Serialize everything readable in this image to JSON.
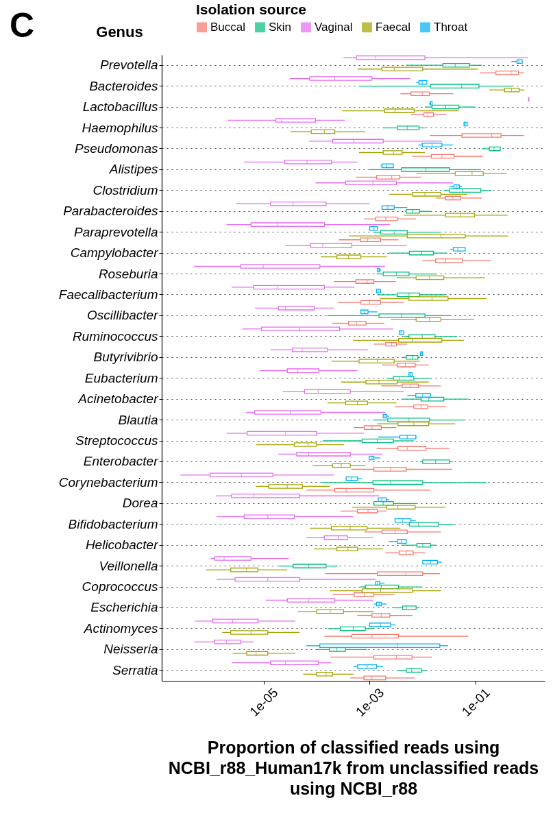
{
  "chart_data": {
    "type": "box",
    "orientation": "horizontal",
    "title": "C",
    "ylabel": "Genus",
    "xlabel": "Proportion of classified reads using NCBI_r88_Human17k from unclassified reads using NCBI_r88",
    "legend_title": "Isolation source",
    "legend": "top",
    "grid": "y",
    "log": "x",
    "xlim": [
      1.2e-07,
      2
    ],
    "xticks": [
      {
        "value": 1e-05,
        "label": "1e-05"
      },
      {
        "value": 0.001,
        "label": "1e-03"
      },
      {
        "value": 0.1,
        "label": "1e-01"
      }
    ],
    "categories": [
      "Prevotella",
      "Bacteroides",
      "Lactobacillus",
      "Haemophilus",
      "Pseudomonas",
      "Alistipes",
      "Clostridium",
      "Parabacteroides",
      "Paraprevotella",
      "Campylobacter",
      "Roseburia",
      "Faecalibacterium",
      "Oscillibacter",
      "Ruminococcus",
      "Butyrivibrio",
      "Eubacterium",
      "Acinetobacter",
      "Blautia",
      "Streptococcus",
      "Enterobacter",
      "Corynebacterium",
      "Dorea",
      "Bifidobacterium",
      "Helicobacter",
      "Veillonella",
      "Coprococcus",
      "Escherichia",
      "Actinomyces",
      "Neisseria",
      "Serratia"
    ],
    "series": [
      {
        "name": "Buccal",
        "color": "#f8766d",
        "boxes": [
          {
            "low": 0.12,
            "q1": 0.24,
            "median": 0.46,
            "q3": 0.64,
            "high": 0.81
          },
          {
            "low": 0.0038,
            "q1": 0.006,
            "median": 0.0098,
            "q3": 0.0135,
            "high": 0.038
          },
          {
            "low": 0.006,
            "q1": 0.0105,
            "median": 0.0125,
            "q3": 0.016,
            "high": 0.028
          },
          {
            "low": 0.0135,
            "q1": 0.055,
            "median": 0.2,
            "q3": 0.3,
            "high": 0.81
          },
          {
            "low": 0.0063,
            "q1": 0.0145,
            "median": 0.023,
            "q3": 0.039,
            "high": 0.135
          },
          {
            "low": 0.00055,
            "q1": 0.00135,
            "median": 0.0026,
            "q3": 0.0037,
            "high": 0.0093
          },
          {
            "low": 0.0175,
            "q1": 0.027,
            "median": 0.037,
            "q3": 0.052,
            "high": 0.13
          },
          {
            "low": 0.00078,
            "q1": 0.0013,
            "median": 0.002,
            "q3": 0.0033,
            "high": 0.0075
          },
          {
            "low": 0.00026,
            "q1": 0.00067,
            "median": 0.00091,
            "q3": 0.0016,
            "high": 0.0035
          },
          {
            "low": 0.0098,
            "q1": 0.0175,
            "median": 0.027,
            "q3": 0.056,
            "high": 0.19
          },
          {
            "low": 0.00021,
            "q1": 0.00055,
            "median": 0.00089,
            "q3": 0.0012,
            "high": 0.0031
          },
          {
            "low": 0.00025,
            "q1": 0.00068,
            "median": 0.00098,
            "q3": 0.0016,
            "high": 0.0044
          },
          {
            "low": 0.000195,
            "q1": 0.0004,
            "median": 0.00056,
            "q3": 0.00085,
            "high": 0.0019
          },
          {
            "low": 0.0012,
            "q1": 0.002,
            "median": 0.0026,
            "q3": 0.0032,
            "high": 0.0051
          },
          {
            "low": 0.0017,
            "q1": 0.0033,
            "median": 0.0047,
            "q3": 0.0072,
            "high": 0.013
          },
          {
            "low": 0.00165,
            "q1": 0.0041,
            "median": 0.0058,
            "q3": 0.0083,
            "high": 0.022
          },
          {
            "low": 0.003,
            "q1": 0.0068,
            "median": 0.0093,
            "q3": 0.0125,
            "high": 0.028
          },
          {
            "low": 0.0005,
            "q1": 0.00079,
            "median": 0.0011,
            "q3": 0.00165,
            "high": 0.0032
          },
          {
            "low": 0.00135,
            "q1": 0.0034,
            "median": 0.0051,
            "q3": 0.0115,
            "high": 0.032
          },
          {
            "low": 0.00045,
            "q1": 0.0012,
            "median": 0.0025,
            "q3": 0.0049,
            "high": 0.036
          },
          {
            "low": 6.4e-05,
            "q1": 0.00022,
            "median": 0.00036,
            "q3": 0.0012,
            "high": 0.014
          },
          {
            "low": 0.00028,
            "q1": 0.00059,
            "median": 0.00093,
            "q3": 0.0014,
            "high": 0.0021
          },
          {
            "low": 0.00079,
            "q1": 0.0017,
            "median": 0.003,
            "q3": 0.0051,
            "high": 0.022
          },
          {
            "low": 0.002,
            "q1": 0.0036,
            "median": 0.0049,
            "q3": 0.0066,
            "high": 0.011
          },
          {
            "low": 0.000145,
            "q1": 0.0014,
            "median": 0.0048,
            "q3": 0.01,
            "high": 0.021
          },
          {
            "low": 0.0002,
            "q1": 0.00051,
            "median": 0.00079,
            "q3": 0.0012,
            "high": 0.0029
          },
          {
            "low": 0.00058,
            "q1": 0.0011,
            "median": 0.00165,
            "q3": 0.0024,
            "high": 0.0064
          },
          {
            "low": 0.00014,
            "q1": 0.00046,
            "median": 0.0011,
            "q3": 0.0035,
            "high": 0.072
          },
          {
            "low": 0.00018,
            "q1": 0.0012,
            "median": 0.0032,
            "q3": 0.0063,
            "high": 0.015
          },
          {
            "low": 0.00043,
            "q1": 0.00078,
            "median": 0.0011,
            "q3": 0.002,
            "high": 0.0071
          }
        ]
      },
      {
        "name": "Skin",
        "color": "#00bf7d",
        "boxes": [
          {
            "low": 0.0049,
            "q1": 0.024,
            "median": 0.041,
            "q3": 0.076,
            "high": 0.13
          },
          {
            "low": 0.00065,
            "q1": 0.014,
            "median": 0.054,
            "q3": 0.115,
            "high": 0.49
          },
          {
            "low": 0.011,
            "q1": 0.015,
            "median": 0.027,
            "q3": 0.048,
            "high": 0.098
          },
          {
            "low": 0.0018,
            "q1": 0.0033,
            "median": 0.0051,
            "q3": 0.0085,
            "high": 0.011
          },
          {
            "low": 0.13,
            "q1": 0.18,
            "median": 0.22,
            "q3": 0.29,
            "high": 0.29
          },
          {
            "low": 0.00095,
            "q1": 0.004,
            "median": 0.0115,
            "q3": 0.032,
            "high": 0.126
          },
          {
            "low": 0.025,
            "q1": 0.032,
            "median": 0.056,
            "q3": 0.124,
            "high": 0.2
          },
          {
            "low": 0.0046,
            "q1": 0.0049,
            "median": 0.0064,
            "q3": 0.0087,
            "high": 0.014
          },
          {
            "low": 0.0012,
            "q1": 0.0016,
            "median": 0.0029,
            "q3": 0.0051,
            "high": 0.021
          },
          {
            "low": 0.0023,
            "q1": 0.0056,
            "median": 0.0095,
            "q3": 0.016,
            "high": 0.029
          },
          {
            "low": 0.00135,
            "q1": 0.0018,
            "median": 0.0032,
            "q3": 0.0055,
            "high": 0.0185
          },
          {
            "low": 0.0014,
            "q1": 0.0033,
            "median": 0.0055,
            "q3": 0.0088,
            "high": 0.026
          },
          {
            "low": 0.00016,
            "q1": 0.0015,
            "median": 0.004,
            "q3": 0.011,
            "high": 0.035
          },
          {
            "low": 0.0044,
            "q1": 0.0055,
            "median": 0.0098,
            "q3": 0.017,
            "high": 0.045
          },
          {
            "low": 0.0042,
            "q1": 0.0049,
            "median": 0.0064,
            "q3": 0.0081,
            "high": 0.0089
          },
          {
            "low": 0.0021,
            "q1": 0.0028,
            "median": 0.0036,
            "q3": 0.0068,
            "high": 0.014
          },
          {
            "low": 0.004,
            "q1": 0.0093,
            "median": 0.013,
            "q3": 0.025,
            "high": 0.073
          },
          {
            "low": 0.0012,
            "q1": 0.0022,
            "median": 0.0055,
            "q3": 0.0135,
            "high": 0.06
          },
          {
            "low": 0.00013,
            "q1": 0.00072,
            "median": 0.0014,
            "q3": 0.0028,
            "high": 0.0068
          },
          {
            "low": 0.0088,
            "q1": 0.01,
            "median": 0.0175,
            "q3": 0.032,
            "high": 0.037
          },
          {
            "low": 0.000125,
            "q1": 0.00115,
            "median": 0.0025,
            "q3": 0.01,
            "high": 0.16
          },
          {
            "low": 0.0012,
            "q1": 0.0012,
            "median": 0.0018,
            "q3": 0.0028,
            "high": 0.0079
          },
          {
            "low": 0.0054,
            "q1": 0.0056,
            "median": 0.0083,
            "q3": 0.02,
            "high": 0.039
          },
          {
            "low": 0.004,
            "q1": 0.0078,
            "median": 0.01,
            "q3": 0.014,
            "high": 0.018
          },
          {
            "low": 1.95e-05,
            "q1": 3.6e-05,
            "median": 7.1e-05,
            "q3": 0.00015,
            "high": 0.00025
          },
          {
            "low": 0.00066,
            "q1": 0.00083,
            "median": 0.00165,
            "q3": 0.0035,
            "high": 0.0095
          },
          {
            "low": 0.0028,
            "q1": 0.0042,
            "median": 0.0049,
            "q3": 0.0075,
            "high": 0.0088
          },
          {
            "low": 0.00016,
            "q1": 0.00028,
            "median": 0.00049,
            "q3": 0.00083,
            "high": 0.00115
          },
          {
            "low": 0.0001,
            "q1": 0.000175,
            "median": 0.00024,
            "q3": 0.00035,
            "high": 0.00089
          },
          {
            "low": 0.0033,
            "q1": 0.0049,
            "median": 0.0062,
            "q3": 0.0095,
            "high": 0.0115
          }
        ]
      },
      {
        "name": "Vaginal",
        "color": "#e76bf3",
        "boxes": [
          {
            "low": 0.00032,
            "q1": 0.00056,
            "median": 0.0013,
            "q3": 0.011,
            "high": 0.98
          },
          {
            "low": 3.1e-05,
            "q1": 7.4e-05,
            "median": 0.00022,
            "q3": 0.0011,
            "high": 0.0058
          },
          {
            "low": 0.98,
            "q1": 0.99,
            "median": 1.0,
            "q3": 1.0,
            "high": 1.0
          },
          {
            "low": 2.1e-06,
            "q1": 1.7e-05,
            "median": 2.2e-05,
            "q3": 9.5e-05,
            "high": 0.00034
          },
          {
            "low": 7.2e-05,
            "q1": 0.0002,
            "median": 0.0005,
            "q3": 0.0018,
            "high": 0.023
          },
          {
            "low": 4.3e-06,
            "q1": 2.5e-05,
            "median": 6.6e-05,
            "q3": 0.00019,
            "high": 0.00058
          },
          {
            "low": 9.5e-05,
            "q1": 0.00035,
            "median": 0.00115,
            "q3": 0.0032,
            "high": 0.038
          },
          {
            "low": 3e-06,
            "q1": 1.35e-05,
            "median": 3.6e-05,
            "q3": 0.00015,
            "high": 0.001
          },
          {
            "low": 2e-06,
            "q1": 5.8e-06,
            "median": 1.8e-05,
            "q3": 0.00014,
            "high": 0.0024
          },
          {
            "low": 2.6e-05,
            "q1": 7.6e-05,
            "median": 0.00013,
            "q3": 0.00046,
            "high": 0.005
          },
          {
            "low": 4.9e-07,
            "q1": 3.7e-06,
            "median": 9.8e-06,
            "q3": 0.000115,
            "high": 0.00195
          },
          {
            "low": 2.5e-06,
            "q1": 6.5e-06,
            "median": 1.8e-05,
            "q3": 0.00014,
            "high": 0.00052
          },
          {
            "low": 6.8e-06,
            "q1": 1.9e-05,
            "median": 2.6e-05,
            "q3": 9.1e-05,
            "high": 0.00021
          },
          {
            "low": 4e-06,
            "q1": 9.1e-06,
            "median": 4.8e-05,
            "q3": 0.00027,
            "high": 0.0028
          },
          {
            "low": 1.35e-05,
            "q1": 3.5e-05,
            "median": 5.3e-05,
            "q3": 0.00016,
            "high": 0.00093
          },
          {
            "low": 8.3e-06,
            "q1": 2.8e-05,
            "median": 4.4e-05,
            "q3": 0.00011,
            "high": 0.00059
          },
          {
            "low": 2.3e-05,
            "q1": 5.9e-05,
            "median": 0.000107,
            "q3": 0.00043,
            "high": 0.0044
          },
          {
            "low": 4.7e-06,
            "q1": 6.8e-06,
            "median": 3.2e-05,
            "q3": 0.00012,
            "high": 0.002
          },
          {
            "low": 2e-06,
            "q1": 4.9e-06,
            "median": 2.6e-05,
            "q3": 0.0001,
            "high": 0.00079
          },
          {
            "low": 1.9e-05,
            "q1": 4.2e-05,
            "median": 7.1e-05,
            "q3": 0.00043,
            "high": 0.00175
          },
          {
            "low": 2.7e-07,
            "q1": 9.8e-07,
            "median": 3.8e-06,
            "q3": 1.5e-05,
            "high": 0.00021
          },
          {
            "low": 1.25e-06,
            "q1": 2.5e-06,
            "median": 6.6e-06,
            "q3": 4.8e-05,
            "high": 0.0015
          },
          {
            "low": 1.3e-06,
            "q1": 4.3e-06,
            "median": 1.2e-05,
            "q3": 3.8e-05,
            "high": 0.00049
          },
          {
            "low": 6.3e-05,
            "q1": 0.00014,
            "median": 0.00026,
            "q3": 0.00038,
            "high": 0.00115
          },
          {
            "low": 1e-06,
            "q1": 1.2e-06,
            "median": 1.8e-06,
            "q3": 5.8e-06,
            "high": 3e-05
          },
          {
            "low": 1.3e-06,
            "q1": 2.9e-06,
            "median": 1.2e-05,
            "q3": 4.8e-05,
            "high": 0.0013
          },
          {
            "low": 1.1e-05,
            "q1": 2.8e-05,
            "median": 7.1e-05,
            "q3": 0.00022,
            "high": 0.00115
          },
          {
            "low": 5.1e-07,
            "q1": 1.1e-06,
            "median": 2.6e-06,
            "q3": 7.9e-06,
            "high": 4e-05
          },
          {
            "low": 4.9e-07,
            "q1": 1.2e-06,
            "median": 2e-06,
            "q3": 3.7e-06,
            "high": 6.5e-06
          },
          {
            "low": 2.5e-06,
            "q1": 1.35e-05,
            "median": 2.6e-05,
            "q3": 0.000107,
            "high": 0.00019
          }
        ]
      },
      {
        "name": "Faecal",
        "color": "#a3a500",
        "boxes": [
          {
            "low": 0.00059,
            "q1": 0.0017,
            "median": 0.0029,
            "q3": 0.01,
            "high": 0.11
          },
          {
            "low": 0.18,
            "q1": 0.35,
            "median": 0.47,
            "q3": 0.66,
            "high": 0.83
          },
          {
            "low": 0.0003,
            "q1": 0.0019,
            "median": 0.003,
            "q3": 0.0069,
            "high": 0.048
          },
          {
            "low": 3.2e-05,
            "q1": 7.9e-05,
            "median": 0.00014,
            "q3": 0.00022,
            "high": 0.00083
          },
          {
            "low": 0.00063,
            "q1": 0.0018,
            "median": 0.0028,
            "q3": 0.0041,
            "high": 0.011
          },
          {
            "low": 0.0078,
            "q1": 0.041,
            "median": 0.085,
            "q3": 0.138,
            "high": 0.38
          },
          {
            "low": 0.0023,
            "q1": 0.0064,
            "median": 0.011,
            "q3": 0.022,
            "high": 0.069
          },
          {
            "low": 0.0045,
            "q1": 0.027,
            "median": 0.052,
            "q3": 0.095,
            "high": 0.4
          },
          {
            "low": 0.00041,
            "q1": 0.0051,
            "median": 0.022,
            "q3": 0.063,
            "high": 0.41
          },
          {
            "low": 0.00012,
            "q1": 0.00024,
            "median": 0.0004,
            "q3": 0.00068,
            "high": 0.0021
          },
          {
            "low": 0.0032,
            "q1": 0.0075,
            "median": 0.0135,
            "q3": 0.025,
            "high": 0.15
          },
          {
            "low": 0.00155,
            "q1": 0.0055,
            "median": 0.015,
            "q3": 0.03,
            "high": 0.16
          },
          {
            "low": 0.0025,
            "q1": 0.0075,
            "median": 0.0135,
            "q3": 0.022,
            "high": 0.093
          },
          {
            "low": 0.00049,
            "q1": 0.0035,
            "median": 0.0064,
            "q3": 0.023,
            "high": 0.06
          },
          {
            "low": 0.00019,
            "q1": 0.00063,
            "median": 0.0014,
            "q3": 0.0029,
            "high": 0.0088
          },
          {
            "low": 0.00029,
            "q1": 0.00085,
            "median": 0.0015,
            "q3": 0.0033,
            "high": 0.013
          },
          {
            "low": 0.00016,
            "q1": 0.00035,
            "median": 0.00059,
            "q3": 0.00091,
            "high": 0.0032
          },
          {
            "low": 0.0014,
            "q1": 0.0034,
            "median": 0.0068,
            "q3": 0.013,
            "high": 0.041
          },
          {
            "low": 7.2e-06,
            "q1": 3.8e-05,
            "median": 6.9e-05,
            "q3": 0.0001,
            "high": 0.00033
          },
          {
            "low": 8.5e-05,
            "q1": 0.0002,
            "median": 0.00029,
            "q3": 0.00043,
            "high": 0.00083
          },
          {
            "low": 7.1e-06,
            "q1": 1.25e-05,
            "median": 2.8e-05,
            "q3": 5.4e-05,
            "high": 0.00018
          },
          {
            "low": 0.00047,
            "q1": 0.0021,
            "median": 0.0034,
            "q3": 0.0072,
            "high": 0.027
          },
          {
            "low": 7.4e-05,
            "q1": 0.00019,
            "median": 0.00043,
            "q3": 0.00089,
            "high": 0.0038
          },
          {
            "low": 8.8e-05,
            "q1": 0.00024,
            "median": 0.00039,
            "q3": 0.00059,
            "high": 0.0018
          },
          {
            "low": 8.1e-07,
            "q1": 2.4e-06,
            "median": 4.8e-06,
            "q3": 7.8e-06,
            "high": 2.8e-05
          },
          {
            "low": 0.000175,
            "q1": 0.00072,
            "median": 0.0016,
            "q3": 0.0064,
            "high": 0.022
          },
          {
            "low": 4.4e-05,
            "q1": 0.0001,
            "median": 0.00018,
            "q3": 0.00032,
            "high": 0.0012
          },
          {
            "low": 1.65e-06,
            "q1": 2.4e-06,
            "median": 5.8e-06,
            "q3": 1.2e-05,
            "high": 4.8e-05
          },
          {
            "low": 2.6e-06,
            "q1": 4.8e-06,
            "median": 7.2e-06,
            "q3": 1.2e-05,
            "high": 4e-05
          },
          {
            "low": 5.6e-05,
            "q1": 0.0001,
            "median": 0.00015,
            "q3": 0.0002,
            "high": 0.0005
          }
        ]
      },
      {
        "name": "Throat",
        "color": "#00b0f6",
        "boxes": [
          {
            "low": 0.47,
            "q1": 0.6,
            "median": 0.65,
            "q3": 0.75,
            "high": 0.76
          },
          {
            "low": 0.0075,
            "q1": 0.0085,
            "median": 0.0098,
            "q3": 0.012,
            "high": 0.012
          },
          {
            "low": 0.013,
            "q1": 0.014,
            "median": 0.014,
            "q3": 0.015,
            "high": 0.015
          },
          {
            "low": 0.06,
            "q1": 0.06,
            "median": 0.063,
            "q3": 0.069,
            "high": 0.069
          },
          {
            "low": 0.0083,
            "q1": 0.0098,
            "median": 0.015,
            "q3": 0.023,
            "high": 0.037
          },
          {
            "low": 0.0016,
            "q1": 0.0017,
            "median": 0.0021,
            "q3": 0.0028,
            "high": 0.0028
          },
          {
            "low": 0.032,
            "q1": 0.039,
            "median": 0.044,
            "q3": 0.049,
            "high": 0.055
          },
          {
            "low": 0.0017,
            "q1": 0.0017,
            "median": 0.0022,
            "q3": 0.0029,
            "high": 0.0051
          },
          {
            "low": 0.001,
            "q1": 0.001,
            "median": 0.0012,
            "q3": 0.0014,
            "high": 0.0014
          },
          {
            "low": 0.033,
            "q1": 0.038,
            "median": 0.046,
            "q3": 0.063,
            "high": 0.063
          },
          {
            "low": 0.0014,
            "q1": 0.0014,
            "median": 0.0015,
            "q3": 0.00155,
            "high": 0.00165
          },
          {
            "low": 0.0013,
            "q1": 0.00135,
            "median": 0.00145,
            "q3": 0.0016,
            "high": 0.0016
          },
          {
            "low": 0.00068,
            "q1": 0.00068,
            "median": 0.00079,
            "q3": 0.00093,
            "high": 0.0014
          },
          {
            "low": 0.0036,
            "q1": 0.0036,
            "median": 0.0039,
            "q3": 0.0044,
            "high": 0.0044
          },
          {
            "low": 0.0091,
            "q1": 0.0091,
            "median": 0.0096,
            "q3": 0.01,
            "high": 0.01
          },
          {
            "low": 0.0054,
            "q1": 0.0055,
            "median": 0.0059,
            "q3": 0.0063,
            "high": 0.0063
          },
          {
            "low": 0.0051,
            "q1": 0.0074,
            "median": 0.01,
            "q3": 0.014,
            "high": 0.014
          },
          {
            "low": 0.0018,
            "q1": 0.0018,
            "median": 0.00195,
            "q3": 0.0021,
            "high": 0.0023
          },
          {
            "low": 0.00145,
            "q1": 0.0037,
            "median": 0.0051,
            "q3": 0.0074,
            "high": 0.0078
          },
          {
            "low": 0.00098,
            "q1": 0.00098,
            "median": 0.0011,
            "q3": 0.0012,
            "high": 0.0016
          },
          {
            "low": 0.00036,
            "q1": 0.00036,
            "median": 0.00046,
            "q3": 0.00059,
            "high": 0.00072
          },
          {
            "low": 0.00145,
            "q1": 0.00145,
            "median": 0.0017,
            "q3": 0.00205,
            "high": 0.0023
          },
          {
            "low": 0.003,
            "q1": 0.003,
            "median": 0.0042,
            "q3": 0.006,
            "high": 0.0074
          },
          {
            "low": 0.0023,
            "q1": 0.0033,
            "median": 0.004,
            "q3": 0.0049,
            "high": 0.0049
          },
          {
            "low": 0.01,
            "q1": 0.01,
            "median": 0.014,
            "q3": 0.019,
            "high": 0.023
          },
          {
            "low": 0.0013,
            "q1": 0.0013,
            "median": 0.0014,
            "q3": 0.00155,
            "high": 0.0019
          },
          {
            "low": 0.0012,
            "q1": 0.00135,
            "median": 0.0015,
            "q3": 0.00165,
            "high": 0.0021
          },
          {
            "low": 0.001,
            "q1": 0.001,
            "median": 0.0016,
            "q3": 0.0025,
            "high": 0.0031
          },
          {
            "low": 6.4e-05,
            "q1": 0.000115,
            "median": 0.0033,
            "q3": 0.021,
            "high": 0.03
          },
          {
            "low": 0.00049,
            "q1": 0.00059,
            "median": 0.00089,
            "q3": 0.00135,
            "high": 0.0018
          }
        ]
      }
    ]
  }
}
